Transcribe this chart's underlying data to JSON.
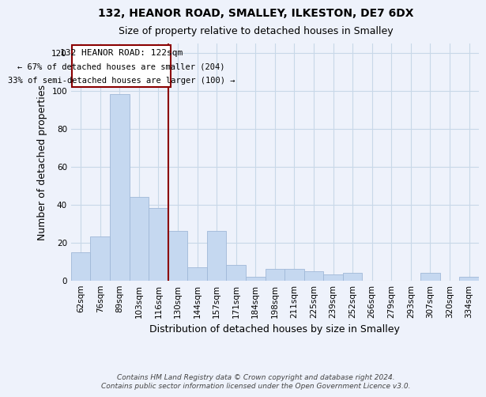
{
  "title": "132, HEANOR ROAD, SMALLEY, ILKESTON, DE7 6DX",
  "subtitle": "Size of property relative to detached houses in Smalley",
  "xlabel": "Distribution of detached houses by size in Smalley",
  "ylabel": "Number of detached properties",
  "bar_labels": [
    "62sqm",
    "76sqm",
    "89sqm",
    "103sqm",
    "116sqm",
    "130sqm",
    "144sqm",
    "157sqm",
    "171sqm",
    "184sqm",
    "198sqm",
    "211sqm",
    "225sqm",
    "239sqm",
    "252sqm",
    "266sqm",
    "279sqm",
    "293sqm",
    "307sqm",
    "320sqm",
    "334sqm"
  ],
  "bar_values": [
    15,
    23,
    98,
    44,
    38,
    26,
    7,
    26,
    8,
    2,
    6,
    6,
    5,
    3,
    4,
    0,
    0,
    0,
    4,
    0,
    2
  ],
  "bar_color": "#c5d8f0",
  "bar_edge_color": "#a0b8d8",
  "ylim": [
    0,
    125
  ],
  "yticks": [
    0,
    20,
    40,
    60,
    80,
    100,
    120
  ],
  "vline_color": "#8b0000",
  "annotation_title": "132 HEANOR ROAD: 122sqm",
  "annotation_line1": "← 67% of detached houses are smaller (204)",
  "annotation_line2": "33% of semi-detached houses are larger (100) →",
  "annotation_box_color": "#8b0000",
  "footer_line1": "Contains HM Land Registry data © Crown copyright and database right 2024.",
  "footer_line2": "Contains public sector information licensed under the Open Government Licence v3.0.",
  "background_color": "#eef2fb",
  "grid_color": "#c8d8e8",
  "title_fontsize": 10,
  "subtitle_fontsize": 9,
  "axis_label_fontsize": 9,
  "tick_fontsize": 7.5,
  "footer_fontsize": 6.5
}
